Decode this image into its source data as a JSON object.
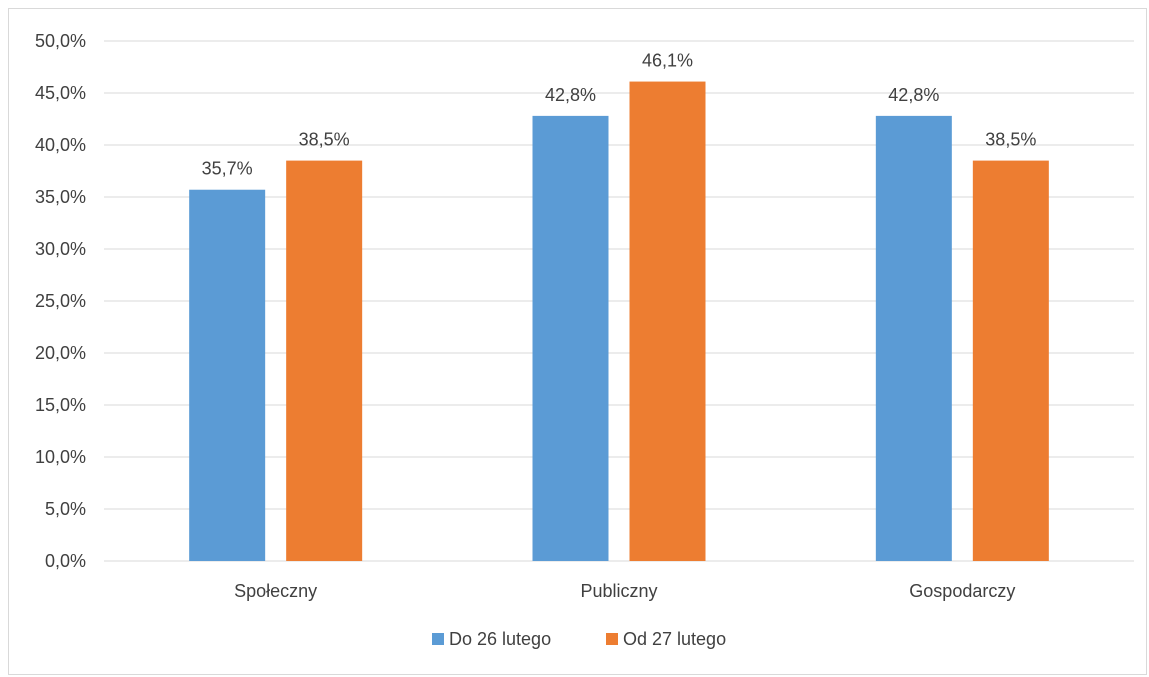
{
  "chart_data": {
    "type": "bar",
    "categories": [
      "Społeczny",
      "Publiczny",
      "Gospodarczy"
    ],
    "series": [
      {
        "name": "Do 26 lutego",
        "values": [
          35.7,
          42.8,
          42.8
        ],
        "labels": [
          "35,7%",
          "42,8%",
          "42,8%"
        ],
        "color": "#5b9bd5"
      },
      {
        "name": "Od 27 lutego",
        "values": [
          38.5,
          46.1,
          38.5
        ],
        "labels": [
          "38,5%",
          "46,1%",
          "38,5%"
        ],
        "color": "#ed7d31"
      }
    ],
    "yticks": [
      "0,0%",
      "5,0%",
      "10,0%",
      "15,0%",
      "20,0%",
      "25,0%",
      "30,0%",
      "35,0%",
      "40,0%",
      "45,0%",
      "50,0%"
    ],
    "ylim": [
      0,
      50
    ],
    "grid": true,
    "gridColor": "#d9d9d9",
    "legend_position": "bottom"
  }
}
